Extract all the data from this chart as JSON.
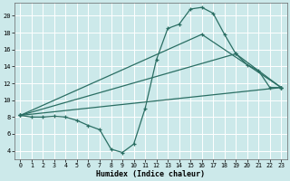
{
  "xlabel": "Humidex (Indice chaleur)",
  "bg_color": "#cce9ea",
  "grid_color": "#ffffff",
  "line_color": "#2a6e63",
  "xlim": [
    -0.5,
    23.5
  ],
  "ylim": [
    3.0,
    21.5
  ],
  "xticks": [
    0,
    1,
    2,
    3,
    4,
    5,
    6,
    7,
    8,
    9,
    10,
    11,
    12,
    13,
    14,
    15,
    16,
    17,
    18,
    19,
    20,
    21,
    22,
    23
  ],
  "yticks": [
    4,
    6,
    8,
    10,
    12,
    14,
    16,
    18,
    20
  ],
  "line1_x": [
    0,
    1,
    2,
    3,
    4,
    5,
    6,
    7,
    8,
    9,
    10,
    11,
    12,
    13,
    14,
    15,
    16,
    17,
    18,
    19,
    20,
    21,
    22,
    23
  ],
  "line1_y": [
    8.2,
    8.0,
    8.0,
    8.1,
    8.0,
    7.6,
    7.0,
    6.5,
    4.2,
    3.8,
    4.8,
    9.0,
    14.8,
    18.5,
    19.0,
    20.8,
    21.0,
    20.3,
    17.8,
    15.5,
    14.2,
    13.5,
    11.5,
    11.5
  ],
  "line2_x": [
    0,
    23
  ],
  "line2_y": [
    8.2,
    11.5
  ],
  "line3_x": [
    0,
    16,
    23
  ],
  "line3_y": [
    8.2,
    17.8,
    11.5
  ],
  "line4_x": [
    0,
    19,
    23
  ],
  "line4_y": [
    8.2,
    15.5,
    11.5
  ]
}
